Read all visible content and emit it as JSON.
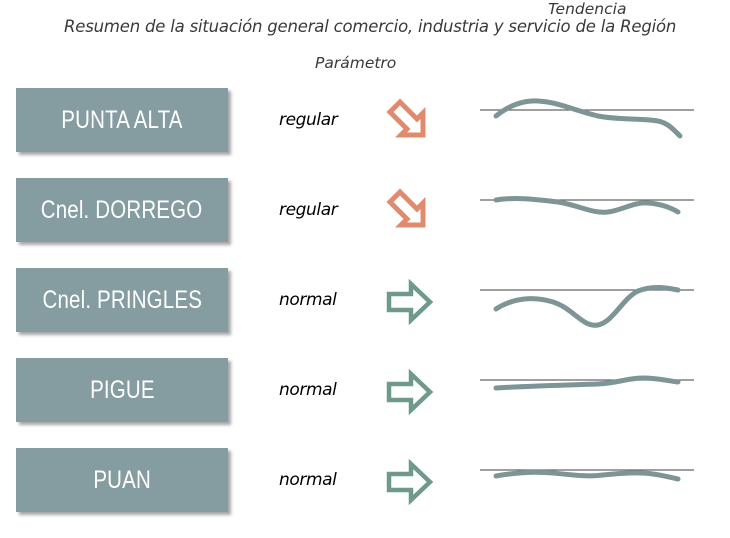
{
  "title": "Resumen de la situación general comercio, industria y servicio de la Región",
  "headers": {
    "parameter": "Parámetro",
    "trend": "Tendencia"
  },
  "colors": {
    "box": "#859ca0",
    "arrow_down": "#e08a6e",
    "arrow_right": "#6f9a8a",
    "trend_line": "#7e9598",
    "baseline": "#666666"
  },
  "rows": [
    {
      "name": "PUNTA ALTA",
      "status": "regular",
      "arrow_icon": "arrow-down-right-icon"
    },
    {
      "name": "Cnel. DORREGO",
      "status": "regular",
      "arrow_icon": "arrow-down-right-icon"
    },
    {
      "name": "Cnel. PRINGLES",
      "status": "normal",
      "arrow_icon": "arrow-right-icon"
    },
    {
      "name": "PIGUE",
      "status": "normal",
      "arrow_icon": "arrow-right-icon"
    },
    {
      "name": "PUAN",
      "status": "normal",
      "arrow_icon": "arrow-right-icon"
    }
  ]
}
